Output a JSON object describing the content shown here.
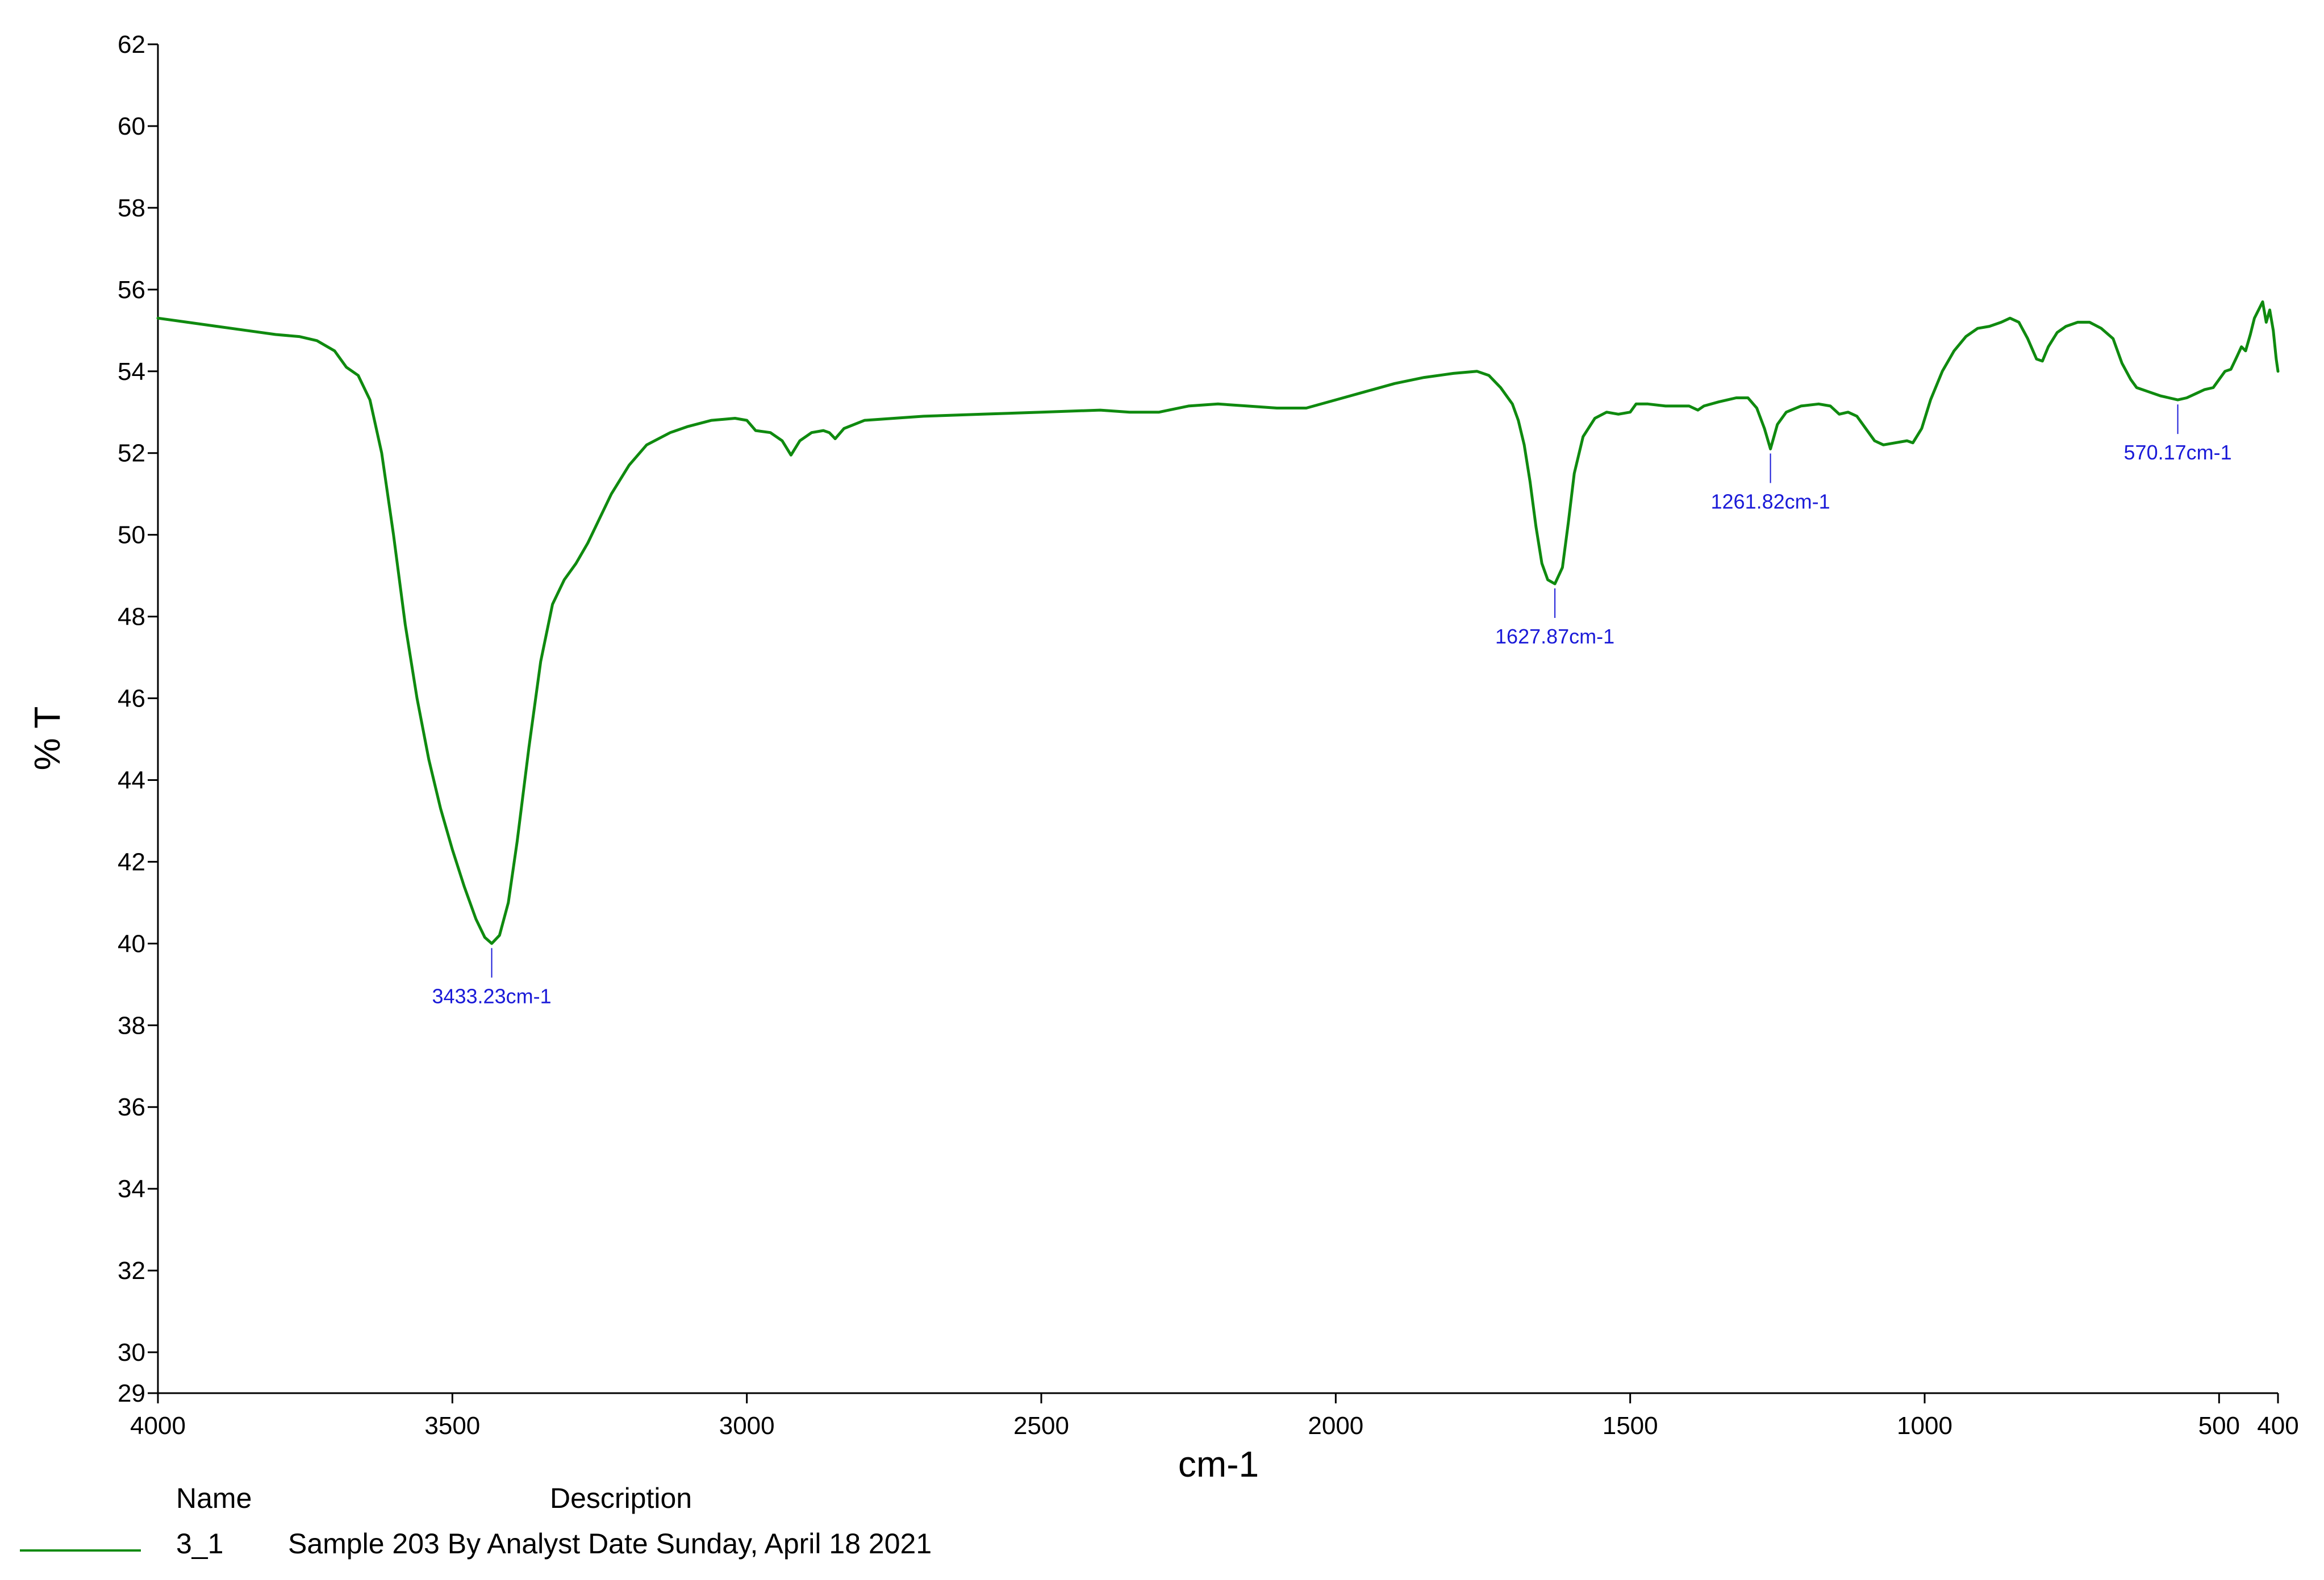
{
  "chart_data": {
    "type": "line",
    "title": "",
    "xlabel": "cm-1",
    "ylabel": "% T",
    "xlim": [
      4000,
      400
    ],
    "ylim": [
      29,
      62
    ],
    "x_reversed": true,
    "grid": false,
    "x_ticks": [
      4000,
      3500,
      3000,
      2500,
      2000,
      1500,
      1000,
      500,
      400
    ],
    "y_ticks": [
      29,
      30,
      32,
      34,
      36,
      38,
      40,
      42,
      44,
      46,
      48,
      50,
      52,
      54,
      56,
      58,
      60,
      62
    ],
    "series": [
      {
        "name": "3_1",
        "color": "#0f8a0f",
        "points": [
          [
            4000,
            55.3
          ],
          [
            3950,
            55.2
          ],
          [
            3900,
            55.1
          ],
          [
            3850,
            55.0
          ],
          [
            3800,
            54.9
          ],
          [
            3760,
            54.85
          ],
          [
            3730,
            54.75
          ],
          [
            3700,
            54.5
          ],
          [
            3680,
            54.1
          ],
          [
            3660,
            53.9
          ],
          [
            3640,
            53.3
          ],
          [
            3620,
            52.0
          ],
          [
            3600,
            50.0
          ],
          [
            3580,
            47.8
          ],
          [
            3560,
            46.0
          ],
          [
            3540,
            44.5
          ],
          [
            3520,
            43.3
          ],
          [
            3500,
            42.3
          ],
          [
            3480,
            41.4
          ],
          [
            3460,
            40.6
          ],
          [
            3445,
            40.15
          ],
          [
            3433.23,
            40.0
          ],
          [
            3420,
            40.2
          ],
          [
            3405,
            41.0
          ],
          [
            3390,
            42.5
          ],
          [
            3370,
            44.8
          ],
          [
            3350,
            46.9
          ],
          [
            3330,
            48.3
          ],
          [
            3310,
            48.9
          ],
          [
            3290,
            49.3
          ],
          [
            3270,
            49.8
          ],
          [
            3250,
            50.4
          ],
          [
            3230,
            51.0
          ],
          [
            3200,
            51.7
          ],
          [
            3170,
            52.2
          ],
          [
            3130,
            52.5
          ],
          [
            3100,
            52.65
          ],
          [
            3060,
            52.8
          ],
          [
            3020,
            52.85
          ],
          [
            3000,
            52.8
          ],
          [
            2985,
            52.55
          ],
          [
            2960,
            52.5
          ],
          [
            2940,
            52.3
          ],
          [
            2925,
            51.95
          ],
          [
            2910,
            52.3
          ],
          [
            2890,
            52.5
          ],
          [
            2870,
            52.55
          ],
          [
            2860,
            52.5
          ],
          [
            2850,
            52.35
          ],
          [
            2835,
            52.6
          ],
          [
            2800,
            52.8
          ],
          [
            2750,
            52.85
          ],
          [
            2700,
            52.9
          ],
          [
            2600,
            52.95
          ],
          [
            2500,
            53.0
          ],
          [
            2400,
            53.05
          ],
          [
            2350,
            53.0
          ],
          [
            2300,
            53.0
          ],
          [
            2250,
            53.15
          ],
          [
            2200,
            53.2
          ],
          [
            2150,
            53.15
          ],
          [
            2100,
            53.1
          ],
          [
            2050,
            53.1
          ],
          [
            2000,
            53.3
          ],
          [
            1950,
            53.5
          ],
          [
            1900,
            53.7
          ],
          [
            1850,
            53.85
          ],
          [
            1800,
            53.95
          ],
          [
            1760,
            54.0
          ],
          [
            1740,
            53.9
          ],
          [
            1720,
            53.6
          ],
          [
            1700,
            53.2
          ],
          [
            1690,
            52.8
          ],
          [
            1680,
            52.2
          ],
          [
            1670,
            51.3
          ],
          [
            1660,
            50.2
          ],
          [
            1650,
            49.3
          ],
          [
            1640,
            48.9
          ],
          [
            1627.87,
            48.8
          ],
          [
            1615,
            49.2
          ],
          [
            1605,
            50.3
          ],
          [
            1595,
            51.5
          ],
          [
            1580,
            52.4
          ],
          [
            1560,
            52.85
          ],
          [
            1540,
            53.0
          ],
          [
            1520,
            52.95
          ],
          [
            1500,
            53.0
          ],
          [
            1490,
            53.2
          ],
          [
            1470,
            53.2
          ],
          [
            1440,
            53.15
          ],
          [
            1400,
            53.15
          ],
          [
            1385,
            53.05
          ],
          [
            1375,
            53.15
          ],
          [
            1350,
            53.25
          ],
          [
            1320,
            53.35
          ],
          [
            1300,
            53.35
          ],
          [
            1285,
            53.1
          ],
          [
            1272,
            52.6
          ],
          [
            1261.82,
            52.1
          ],
          [
            1250,
            52.7
          ],
          [
            1235,
            53.0
          ],
          [
            1210,
            53.15
          ],
          [
            1180,
            53.2
          ],
          [
            1160,
            53.15
          ],
          [
            1145,
            52.95
          ],
          [
            1130,
            53.0
          ],
          [
            1115,
            52.9
          ],
          [
            1100,
            52.6
          ],
          [
            1085,
            52.3
          ],
          [
            1070,
            52.2
          ],
          [
            1050,
            52.25
          ],
          [
            1030,
            52.3
          ],
          [
            1020,
            52.25
          ],
          [
            1005,
            52.6
          ],
          [
            990,
            53.3
          ],
          [
            970,
            54.0
          ],
          [
            950,
            54.5
          ],
          [
            930,
            54.85
          ],
          [
            910,
            55.05
          ],
          [
            890,
            55.1
          ],
          [
            870,
            55.2
          ],
          [
            855,
            55.3
          ],
          [
            840,
            55.2
          ],
          [
            825,
            54.8
          ],
          [
            810,
            54.3
          ],
          [
            800,
            54.25
          ],
          [
            790,
            54.6
          ],
          [
            775,
            54.95
          ],
          [
            760,
            55.1
          ],
          [
            740,
            55.2
          ],
          [
            720,
            55.2
          ],
          [
            700,
            55.05
          ],
          [
            680,
            54.8
          ],
          [
            665,
            54.2
          ],
          [
            650,
            53.8
          ],
          [
            640,
            53.6
          ],
          [
            620,
            53.5
          ],
          [
            600,
            53.4
          ],
          [
            585,
            53.35
          ],
          [
            570.17,
            53.3
          ],
          [
            555,
            53.35
          ],
          [
            540,
            53.45
          ],
          [
            525,
            53.55
          ],
          [
            510,
            53.6
          ],
          [
            500,
            53.8
          ],
          [
            490,
            54.0
          ],
          [
            480,
            54.05
          ],
          [
            470,
            54.35
          ],
          [
            462,
            54.6
          ],
          [
            455,
            54.5
          ],
          [
            447,
            54.9
          ],
          [
            440,
            55.3
          ],
          [
            433,
            55.5
          ],
          [
            426,
            55.7
          ],
          [
            420,
            55.2
          ],
          [
            414,
            55.5
          ],
          [
            408,
            55.0
          ],
          [
            403,
            54.3
          ],
          [
            400,
            54.0
          ]
        ]
      }
    ],
    "annotations": [
      {
        "x": 3433.23,
        "y": 40.0,
        "text": "3433.23cm-1"
      },
      {
        "x": 1627.87,
        "y": 48.8,
        "text": "1627.87cm-1"
      },
      {
        "x": 1261.82,
        "y": 52.1,
        "text": "1261.82cm-1"
      },
      {
        "x": 570.17,
        "y": 53.3,
        "text": "570.17cm-1"
      }
    ],
    "legend": {
      "placement": "bottom-left",
      "name_header": "Name",
      "description_header": "Description",
      "entries": [
        {
          "name": "3_1",
          "description": "Sample 203 By Analyst Date Sunday, April 18 2021",
          "color": "#0f8a0f"
        }
      ]
    }
  }
}
